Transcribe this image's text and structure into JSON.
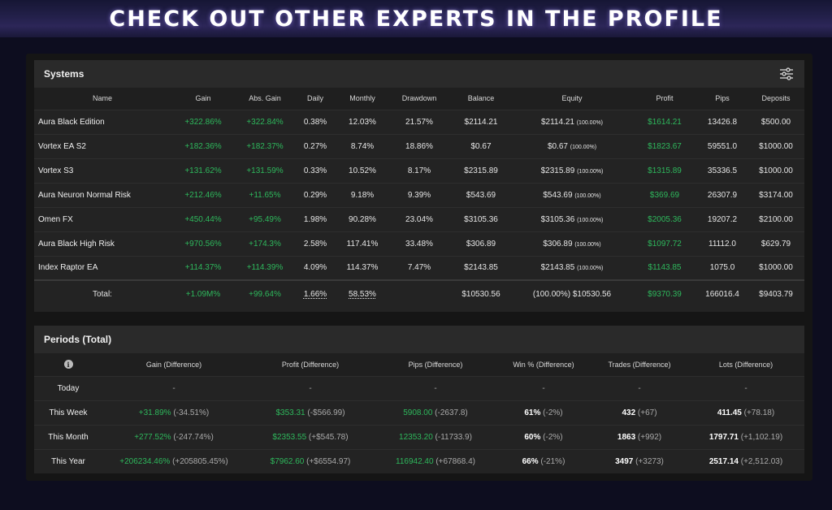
{
  "banner": {
    "title": "CHECK OUT OTHER EXPERTS IN THE PROFILE"
  },
  "systems": {
    "title": "Systems",
    "columns": [
      "Name",
      "Gain",
      "Abs. Gain",
      "Daily",
      "Monthly",
      "Drawdown",
      "Balance",
      "Equity",
      "Profit",
      "Pips",
      "Deposits"
    ],
    "rows": [
      {
        "name": "Aura Black Edition",
        "gain": "+322.86%",
        "abs_gain": "+322.84%",
        "daily": "0.38%",
        "monthly": "12.03%",
        "drawdown": "21.57%",
        "balance": "$2114.21",
        "equity": "$2114.21",
        "equity_pct": "(100.00%)",
        "profit": "$1614.21",
        "pips": "13426.8",
        "deposits": "$500.00"
      },
      {
        "name": "Vortex EA S2",
        "gain": "+182.36%",
        "abs_gain": "+182.37%",
        "daily": "0.27%",
        "monthly": "8.74%",
        "drawdown": "18.86%",
        "balance": "$0.67",
        "equity": "$0.67",
        "equity_pct": "(100.00%)",
        "profit": "$1823.67",
        "pips": "59551.0",
        "deposits": "$1000.00"
      },
      {
        "name": "Vortex S3",
        "gain": "+131.62%",
        "abs_gain": "+131.59%",
        "daily": "0.33%",
        "monthly": "10.52%",
        "drawdown": "8.17%",
        "balance": "$2315.89",
        "equity": "$2315.89",
        "equity_pct": "(100.00%)",
        "profit": "$1315.89",
        "pips": "35336.5",
        "deposits": "$1000.00"
      },
      {
        "name": "Aura Neuron Normal Risk",
        "gain": "+212.46%",
        "abs_gain": "+11.65%",
        "daily": "0.29%",
        "monthly": "9.18%",
        "drawdown": "9.39%",
        "balance": "$543.69",
        "equity": "$543.69",
        "equity_pct": "(100.00%)",
        "profit": "$369.69",
        "pips": "26307.9",
        "deposits": "$3174.00"
      },
      {
        "name": "Omen FX",
        "gain": "+450.44%",
        "abs_gain": "+95.49%",
        "daily": "1.98%",
        "monthly": "90.28%",
        "drawdown": "23.04%",
        "balance": "$3105.36",
        "equity": "$3105.36",
        "equity_pct": "(100.00%)",
        "profit": "$2005.36",
        "pips": "19207.2",
        "deposits": "$2100.00"
      },
      {
        "name": "Aura Black High Risk",
        "gain": "+970.56%",
        "abs_gain": "+174.3%",
        "daily": "2.58%",
        "monthly": "117.41%",
        "drawdown": "33.48%",
        "balance": "$306.89",
        "equity": "$306.89",
        "equity_pct": "(100.00%)",
        "profit": "$1097.72",
        "pips": "11112.0",
        "deposits": "$629.79"
      },
      {
        "name": "Index Raptor EA",
        "gain": "+114.37%",
        "abs_gain": "+114.39%",
        "daily": "4.09%",
        "monthly": "114.37%",
        "drawdown": "7.47%",
        "balance": "$2143.85",
        "equity": "$2143.85",
        "equity_pct": "(100.00%)",
        "profit": "$1143.85",
        "pips": "1075.0",
        "deposits": "$1000.00"
      }
    ],
    "total": {
      "label": "Total:",
      "gain": "+1.09M%",
      "abs_gain": "+99.64%",
      "daily": "1.66%",
      "monthly": "58.53%",
      "drawdown": "",
      "balance": "$10530.56",
      "equity": "(100.00%) $10530.56",
      "profit": "$9370.39",
      "pips": "166016.4",
      "deposits": "$9403.79"
    }
  },
  "periods": {
    "title": "Periods (Total)",
    "info_glyph": "i",
    "columns": [
      "Gain (Difference)",
      "Profit (Difference)",
      "Pips (Difference)",
      "Win % (Difference)",
      "Trades (Difference)",
      "Lots (Difference)"
    ],
    "rows": [
      {
        "label": "Today",
        "gain": "-",
        "gain_diff": "",
        "profit": "-",
        "profit_diff": "",
        "pips": "-",
        "pips_diff": "",
        "win": "-",
        "win_diff": "",
        "trades": "-",
        "trades_diff": "",
        "lots": "-",
        "lots_diff": ""
      },
      {
        "label": "This Week",
        "gain": "+31.89%",
        "gain_diff": "(-34.51%)",
        "profit": "$353.31",
        "profit_diff": "(-$566.99)",
        "pips": "5908.00",
        "pips_diff": "(-2637.8)",
        "win": "61%",
        "win_diff": "(-2%)",
        "trades": "432",
        "trades_diff": "(+67)",
        "lots": "411.45",
        "lots_diff": "(+78.18)"
      },
      {
        "label": "This Month",
        "gain": "+277.52%",
        "gain_diff": "(-247.74%)",
        "profit": "$2353.55",
        "profit_diff": "(+$545.78)",
        "pips": "12353.20",
        "pips_diff": "(-11733.9)",
        "win": "60%",
        "win_diff": "(-2%)",
        "trades": "1863",
        "trades_diff": "(+992)",
        "lots": "1797.71",
        "lots_diff": "(+1,102.19)"
      },
      {
        "label": "This Year",
        "gain": "+206234.46%",
        "gain_diff": "(+205805.45%)",
        "profit": "$7962.60",
        "profit_diff": "(+$6554.97)",
        "pips": "116942.40",
        "pips_diff": "(+67868.4)",
        "win": "66%",
        "win_diff": "(-21%)",
        "trades": "3497",
        "trades_diff": "(+3273)",
        "lots": "2517.14",
        "lots_diff": "(+2,512.03)"
      }
    ]
  },
  "colors": {
    "positive": "#2eb85c",
    "background": "#0d0d1f",
    "panel": "#232323"
  },
  "icons": {
    "filter": "sliders-icon",
    "info": "info-icon"
  }
}
